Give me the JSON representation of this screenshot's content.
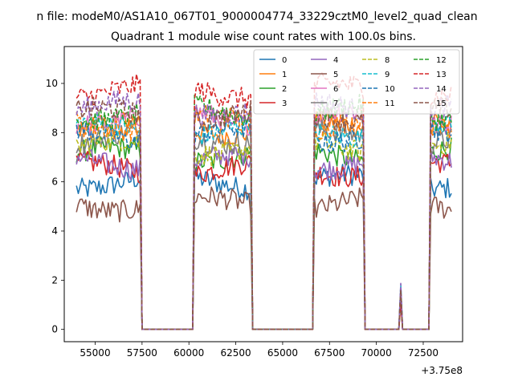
{
  "chart_data": {
    "type": "line",
    "suptitle": "n file: modeM0/AS1A10_067T01_9000004774_33229cztM0_level2_quad_clean",
    "title": "Quadrant 1 module wise count rates with 100.0s bins.",
    "xlabel": "",
    "ylabel": "",
    "x_offset_label": "+3.75e8",
    "xlim": [
      53350,
      74600
    ],
    "ylim": [
      -0.5,
      11.5
    ],
    "x_ticks": [
      55000,
      57500,
      60000,
      62500,
      65000,
      67500,
      70000,
      72500
    ],
    "x_tick_labels": [
      "55000",
      "57500",
      "60000",
      "62500",
      "65000",
      "67500",
      "70000",
      "72500"
    ],
    "y_ticks": [
      0,
      2,
      4,
      6,
      8,
      10
    ],
    "y_tick_labels": [
      "0",
      "2",
      "4",
      "6",
      "8",
      "10"
    ],
    "bin_seconds": 100,
    "x_start": 54000,
    "x_end": 74000,
    "on_segments": [
      [
        54000,
        57400
      ],
      [
        60300,
        63300
      ],
      [
        66700,
        69300
      ],
      [
        72900,
        74000
      ]
    ],
    "spike": {
      "x": 71300,
      "y_max": 1.9
    },
    "legend_position": "upper right",
    "legend_columns": 4,
    "series": [
      {
        "name": "0",
        "color": "#1f77b4",
        "dash": "solid",
        "level": 6.0
      },
      {
        "name": "1",
        "color": "#ff7f0e",
        "dash": "solid",
        "level": 8.2
      },
      {
        "name": "2",
        "color": "#2ca02c",
        "dash": "solid",
        "level": 7.1
      },
      {
        "name": "3",
        "color": "#d62728",
        "dash": "solid",
        "level": 6.5
      },
      {
        "name": "4",
        "color": "#9467bd",
        "dash": "solid",
        "level": 6.8
      },
      {
        "name": "5",
        "color": "#8c564b",
        "dash": "solid",
        "level": 5.1
      },
      {
        "name": "6",
        "color": "#e377c2",
        "dash": "solid",
        "level": 8.6
      },
      {
        "name": "7",
        "color": "#7f7f7f",
        "dash": "solid",
        "level": 7.8
      },
      {
        "name": "8",
        "color": "#bcbd22",
        "dash": "dashed",
        "level": 7.4
      },
      {
        "name": "9",
        "color": "#17becf",
        "dash": "dashed",
        "level": 8.1
      },
      {
        "name": "10",
        "color": "#1f77b4",
        "dash": "dashed",
        "level": 7.9
      },
      {
        "name": "11",
        "color": "#ff7f0e",
        "dash": "dashed",
        "level": 8.4
      },
      {
        "name": "12",
        "color": "#2ca02c",
        "dash": "dashed",
        "level": 8.8
      },
      {
        "name": "13",
        "color": "#d62728",
        "dash": "dashed",
        "level": 9.7
      },
      {
        "name": "14",
        "color": "#9467bd",
        "dash": "dashed",
        "level": 9.0
      },
      {
        "name": "15",
        "color": "#8c564b",
        "dash": "dashed",
        "level": 8.7
      }
    ]
  }
}
